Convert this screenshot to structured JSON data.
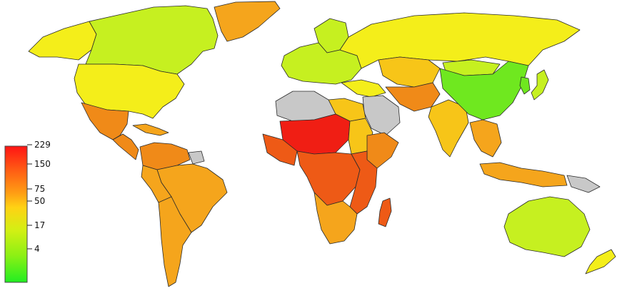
{
  "legend": {
    "ticks": [
      "229",
      "150",
      "75",
      "50",
      "17",
      "4"
    ],
    "gradient_colors": [
      "#ff1a1a",
      "#ff6a1a",
      "#ffa31a",
      "#ffd21a",
      "#d6f21a",
      "#8ef01a",
      "#26ee26"
    ],
    "no_data_color": "#c8c8c8"
  },
  "colors": {
    "very_high": "#f01e14",
    "high": "#ee5a16",
    "mid_high": "#f08a18",
    "mid": "#f5a51c",
    "mid_low": "#f7c518",
    "low": "#f4ee1a",
    "very_low": "#c6f020",
    "lowest": "#6fe81f",
    "none": "#c8c8c8"
  },
  "regions": [
    {
      "name": "greenland",
      "color_key": "mid"
    },
    {
      "name": "alaska",
      "color_key": "low"
    },
    {
      "name": "canada",
      "color_key": "very_low"
    },
    {
      "name": "united-states",
      "color_key": "low"
    },
    {
      "name": "mexico",
      "color_key": "mid_high"
    },
    {
      "name": "central-america",
      "color_key": "mid_high"
    },
    {
      "name": "caribbean",
      "color_key": "mid"
    },
    {
      "name": "colombia-venezuela",
      "color_key": "mid_high"
    },
    {
      "name": "brazil",
      "color_key": "mid"
    },
    {
      "name": "andes",
      "color_key": "mid"
    },
    {
      "name": "southern-cone",
      "color_key": "mid"
    },
    {
      "name": "guianas",
      "color_key": "none"
    },
    {
      "name": "scandinavia",
      "color_key": "very_low"
    },
    {
      "name": "europe",
      "color_key": "very_low"
    },
    {
      "name": "russia",
      "color_key": "low"
    },
    {
      "name": "kazakhstan-central-asia",
      "color_key": "mid_low"
    },
    {
      "name": "middle-east",
      "color_key": "low"
    },
    {
      "name": "arabia",
      "color_key": "none"
    },
    {
      "name": "iran-afghanistan",
      "color_key": "mid_high"
    },
    {
      "name": "india",
      "color_key": "mid_low"
    },
    {
      "name": "china",
      "color_key": "lowest"
    },
    {
      "name": "mongolia",
      "color_key": "very_low"
    },
    {
      "name": "korea",
      "color_key": "lowest"
    },
    {
      "name": "japan",
      "color_key": "very_low"
    },
    {
      "name": "southeast-asia",
      "color_key": "mid"
    },
    {
      "name": "indonesia",
      "color_key": "mid"
    },
    {
      "name": "new-guinea",
      "color_key": "none"
    },
    {
      "name": "australia",
      "color_key": "very_low"
    },
    {
      "name": "new-zealand",
      "color_key": "low"
    },
    {
      "name": "north-africa-west",
      "color_key": "none"
    },
    {
      "name": "north-africa-east",
      "color_key": "mid_low"
    },
    {
      "name": "sahel",
      "color_key": "very_high"
    },
    {
      "name": "west-africa",
      "color_key": "high"
    },
    {
      "name": "sudan",
      "color_key": "mid_low"
    },
    {
      "name": "horn-of-africa",
      "color_key": "mid_high"
    },
    {
      "name": "central-africa",
      "color_key": "high"
    },
    {
      "name": "east-africa",
      "color_key": "high"
    },
    {
      "name": "southern-africa",
      "color_key": "mid"
    },
    {
      "name": "madagascar",
      "color_key": "high"
    }
  ]
}
